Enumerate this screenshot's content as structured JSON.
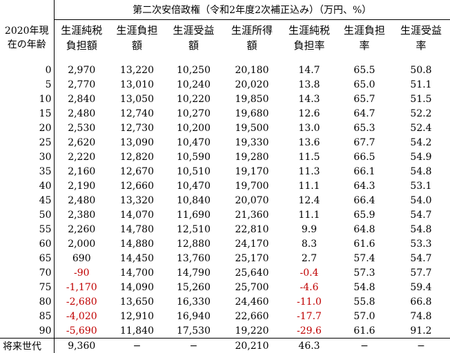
{
  "title": "第二次安倍政権（令和2年度2次補正込み）（万円、%）",
  "age_header_line1": "2020年現",
  "age_header_line2": "在の年齢",
  "columns": [
    {
      "line1": "生涯純税",
      "line2": "負担額"
    },
    {
      "line1": "生涯負担",
      "line2": "額"
    },
    {
      "line1": "生涯受益",
      "line2": "額"
    },
    {
      "line1": "生涯所得",
      "line2": "額"
    },
    {
      "line1": "生涯純税",
      "line2": "負担率"
    },
    {
      "line1": "生涯負担",
      "line2": "率"
    },
    {
      "line1": "生涯受益",
      "line2": "率"
    }
  ],
  "rows": [
    {
      "age": "0",
      "v": [
        "2,970",
        "13,220",
        "10,250",
        "20,180",
        "14.7",
        "65.5",
        "50.8"
      ]
    },
    {
      "age": "5",
      "v": [
        "2,770",
        "13,010",
        "10,240",
        "20,020",
        "13.8",
        "65.0",
        "51.1"
      ]
    },
    {
      "age": "10",
      "v": [
        "2,840",
        "13,050",
        "10,220",
        "19,850",
        "14.3",
        "65.7",
        "51.5"
      ]
    },
    {
      "age": "15",
      "v": [
        "2,480",
        "12,740",
        "10,270",
        "19,680",
        "12.6",
        "64.7",
        "52.2"
      ]
    },
    {
      "age": "20",
      "v": [
        "2,530",
        "12,730",
        "10,200",
        "19,500",
        "13.0",
        "65.3",
        "52.4"
      ]
    },
    {
      "age": "25",
      "v": [
        "2,620",
        "13,090",
        "10,470",
        "19,330",
        "13.6",
        "67.7",
        "54.2"
      ]
    },
    {
      "age": "30",
      "v": [
        "2,220",
        "12,820",
        "10,590",
        "19,280",
        "11.5",
        "66.5",
        "54.9"
      ]
    },
    {
      "age": "35",
      "v": [
        "2,160",
        "12,670",
        "10,510",
        "19,170",
        "11.3",
        "66.1",
        "54.8"
      ]
    },
    {
      "age": "40",
      "v": [
        "2,190",
        "12,660",
        "10,470",
        "19,700",
        "11.1",
        "64.3",
        "53.1"
      ]
    },
    {
      "age": "45",
      "v": [
        "2,480",
        "13,320",
        "10,840",
        "20,070",
        "12.4",
        "66.4",
        "54.0"
      ]
    },
    {
      "age": "50",
      "v": [
        "2,380",
        "14,070",
        "11,690",
        "21,360",
        "11.1",
        "65.9",
        "54.7"
      ]
    },
    {
      "age": "55",
      "v": [
        "2,260",
        "14,780",
        "12,510",
        "22,810",
        "9.9",
        "64.8",
        "54.8"
      ]
    },
    {
      "age": "60",
      "v": [
        "2,000",
        "14,880",
        "12,880",
        "24,170",
        "8.3",
        "61.6",
        "53.3"
      ]
    },
    {
      "age": "65",
      "v": [
        "690",
        "14,450",
        "13,760",
        "25,170",
        "2.7",
        "57.4",
        "54.7"
      ]
    },
    {
      "age": "70",
      "v": [
        "-90",
        "14,700",
        "14,790",
        "25,640",
        "-0.4",
        "57.3",
        "57.7"
      ]
    },
    {
      "age": "75",
      "v": [
        "-1,170",
        "14,090",
        "15,260",
        "25,700",
        "-4.6",
        "54.8",
        "59.4"
      ]
    },
    {
      "age": "80",
      "v": [
        "-2,680",
        "13,650",
        "16,330",
        "24,460",
        "-11.0",
        "55.8",
        "66.8"
      ]
    },
    {
      "age": "85",
      "v": [
        "-4,020",
        "12,910",
        "16,940",
        "22,660",
        "-17.7",
        "57.0",
        "74.8"
      ]
    },
    {
      "age": "90",
      "v": [
        "-5,690",
        "11,840",
        "17,530",
        "19,220",
        "-29.6",
        "61.6",
        "91.2"
      ]
    }
  ],
  "future": {
    "age": "将来世代",
    "v": [
      "9,360",
      "−",
      "−",
      "20,210",
      "46.3",
      "−",
      "−"
    ]
  },
  "negative_color": "#c00000"
}
